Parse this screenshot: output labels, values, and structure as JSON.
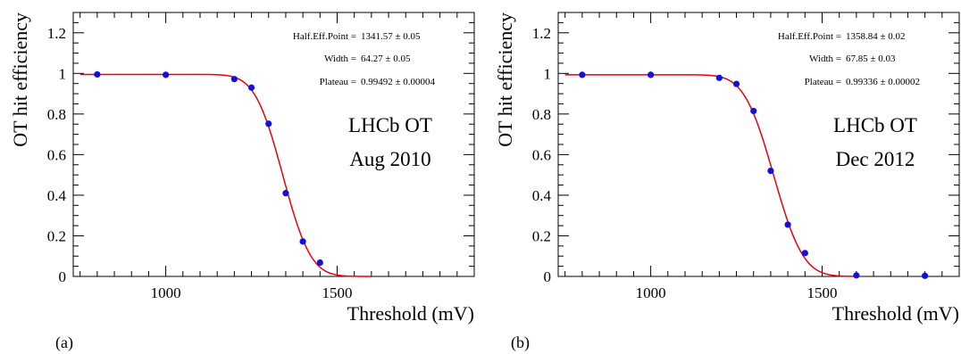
{
  "figure": {
    "panel_labels": [
      "(a)",
      "(b)"
    ]
  },
  "chart_data": [
    {
      "type": "scatter",
      "panel_label": "(a)",
      "xlabel": "Threshold (mV)",
      "ylabel": "OT hit efficiency",
      "xlim": [
        730,
        1900
      ],
      "ylim": [
        0,
        1.3
      ],
      "xticks": [
        1000,
        1500
      ],
      "yticks": [
        0,
        0.2,
        0.4,
        0.6,
        0.8,
        1,
        1.2
      ],
      "grid": false,
      "annotation_lines": [
        "LHCb OT",
        "Aug 2010"
      ],
      "fit_stats": [
        {
          "label": "Half.Eff.Point =",
          "value": "1341.57 ± 0.05"
        },
        {
          "label": "Width =",
          "value": "64.27 ± 0.05"
        },
        {
          "label": "Plateau =",
          "value": "0.99492 ± 0.00004"
        }
      ],
      "fit": {
        "half_eff_point": 1341.57,
        "width": 64.27,
        "plateau": 0.99492,
        "x_range": [
          750,
          1600
        ],
        "color": "#e8000b"
      },
      "series": [
        {
          "marker_color": "#1010e0",
          "x": [
            800,
            1000,
            1200,
            1250,
            1300,
            1350,
            1400,
            1450
          ],
          "y": [
            0.995,
            0.993,
            0.972,
            0.93,
            0.752,
            0.41,
            0.172,
            0.068
          ]
        }
      ]
    },
    {
      "type": "scatter",
      "panel_label": "(b)",
      "xlabel": "Threshold (mV)",
      "ylabel": "OT hit efficiency",
      "xlim": [
        730,
        1900
      ],
      "ylim": [
        0,
        1.3
      ],
      "xticks": [
        1000,
        1500
      ],
      "yticks": [
        0,
        0.2,
        0.4,
        0.6,
        0.8,
        1,
        1.2
      ],
      "grid": false,
      "annotation_lines": [
        "LHCb OT",
        "Dec 2012"
      ],
      "fit_stats": [
        {
          "label": "Half.Eff.Point =",
          "value": "1358.84 ± 0.02"
        },
        {
          "label": "Width =",
          "value": "67.85 ± 0.03"
        },
        {
          "label": "Plateau =",
          "value": "0.99336 ± 0.00002"
        }
      ],
      "fit": {
        "half_eff_point": 1358.84,
        "width": 67.85,
        "plateau": 0.99336,
        "x_range": [
          750,
          1600
        ],
        "color": "#e8000b"
      },
      "series": [
        {
          "marker_color": "#1010e0",
          "x": [
            800,
            1000,
            1200,
            1250,
            1300,
            1350,
            1400,
            1450,
            1600,
            1800
          ],
          "y": [
            0.993,
            0.993,
            0.978,
            0.948,
            0.815,
            0.52,
            0.255,
            0.115,
            0.005,
            0.003
          ]
        }
      ]
    }
  ]
}
